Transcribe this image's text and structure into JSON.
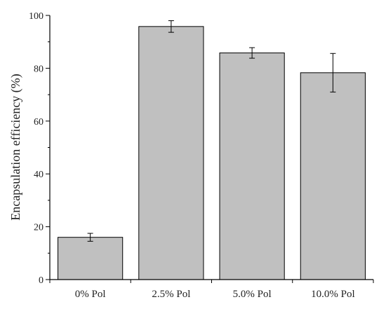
{
  "chart_data": {
    "type": "bar",
    "title": "",
    "xlabel": "",
    "ylabel": "Encapsulation efficiency (%)",
    "categories": [
      "0% Pol",
      "2.5% Pol",
      "5.0% Pol",
      "10.0% Pol"
    ],
    "values": [
      16.0,
      95.8,
      85.8,
      78.3
    ],
    "error": [
      1.5,
      2.2,
      2.0,
      7.3
    ],
    "ylim": [
      0,
      100
    ],
    "yticks": [
      "0",
      "20",
      "40",
      "60",
      "80",
      "100"
    ],
    "bar_color": "#c0c0c0",
    "edge_color": "#000000",
    "grid": false,
    "legend": "none"
  }
}
